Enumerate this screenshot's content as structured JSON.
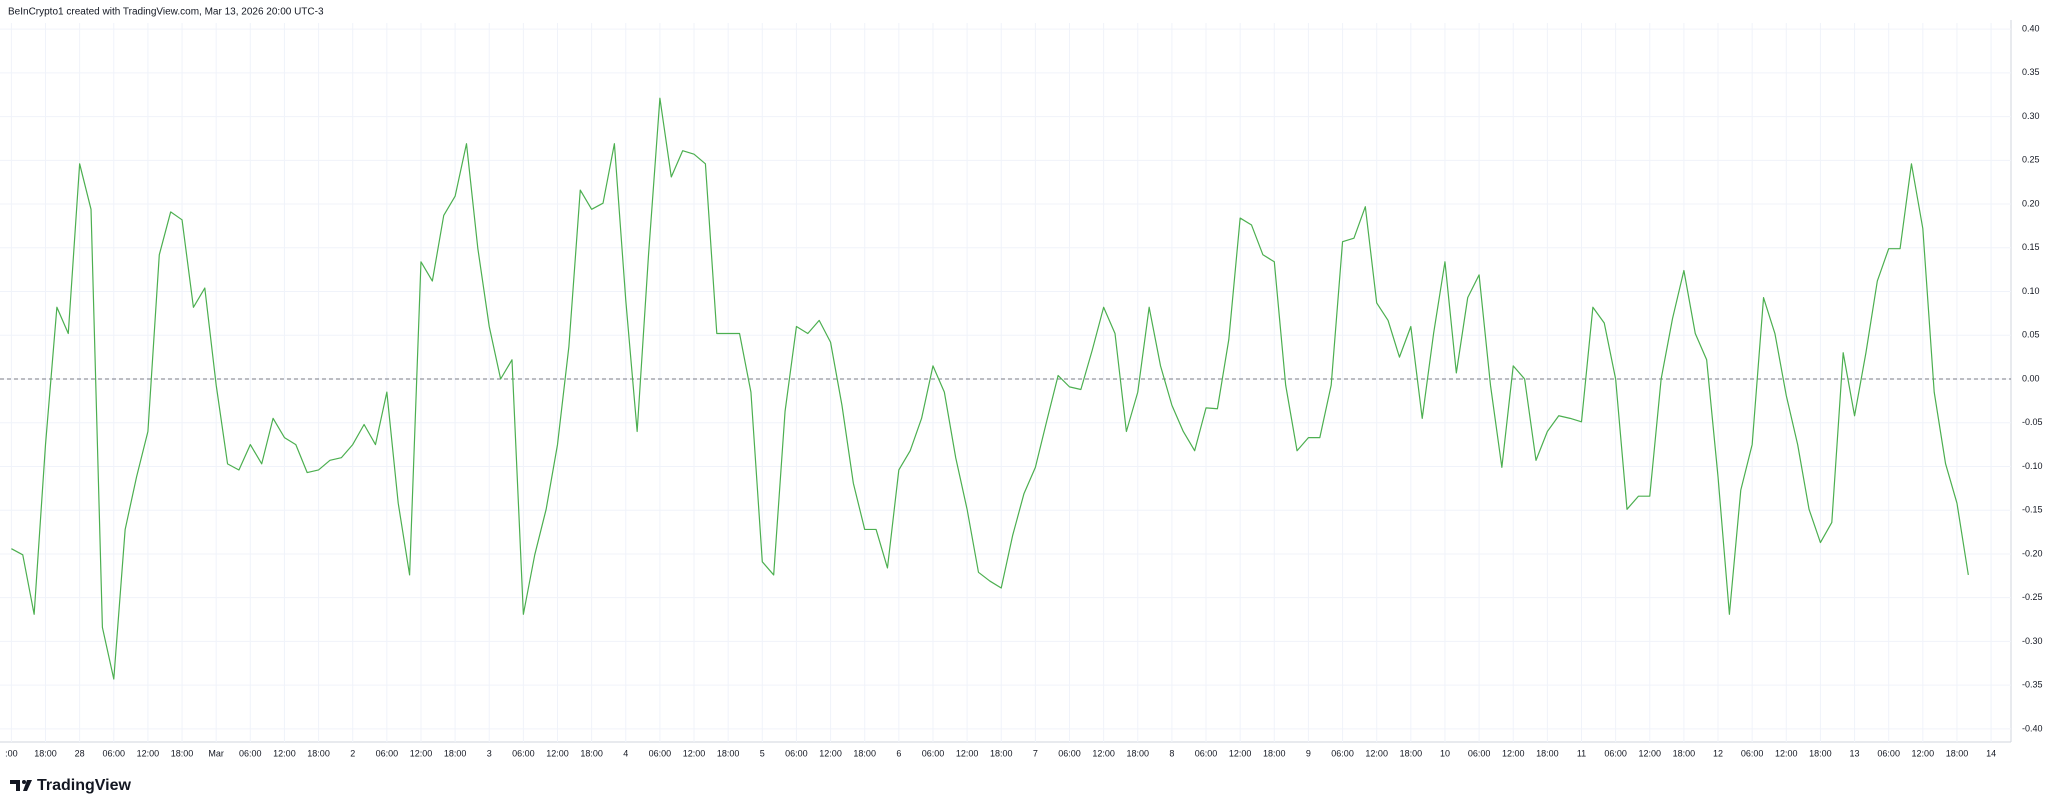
{
  "chart_data": {
    "type": "line",
    "caption": "BeInCrypto1 created with TradingView.com, Mar 13, 2026 20:00 UTC-3",
    "brand": "TradingView",
    "color": "#4caf50",
    "grid": true,
    "baseline": 0,
    "x": [
      0,
      2,
      4,
      6,
      8,
      10,
      12,
      14,
      16,
      18,
      20,
      22,
      24,
      26,
      28,
      30,
      32,
      34,
      36,
      38,
      40,
      42,
      44,
      46,
      48,
      50,
      52,
      54,
      56,
      58,
      60,
      62,
      64,
      66,
      68,
      70,
      72,
      74,
      76,
      78,
      80,
      82,
      84,
      86,
      88,
      90,
      92,
      94,
      96,
      98,
      100,
      102,
      104,
      106,
      108,
      110,
      112,
      114,
      116,
      118,
      120,
      122,
      124,
      126,
      128,
      130,
      132,
      134,
      136,
      138,
      140,
      142,
      144,
      146,
      148,
      150,
      152,
      154,
      156,
      158,
      160,
      162,
      164,
      166,
      168,
      170,
      172,
      174,
      176,
      178,
      180,
      182,
      184,
      186,
      188,
      190,
      192,
      194,
      196,
      198,
      200,
      202,
      204,
      206,
      208,
      210,
      212,
      214,
      216,
      218,
      220,
      222,
      224,
      226,
      228,
      230,
      232,
      234,
      236,
      238,
      240,
      242,
      244,
      246,
      248,
      250,
      252,
      254,
      256,
      258,
      260,
      262,
      264,
      266,
      268,
      270,
      272,
      274,
      276,
      278,
      280,
      282,
      284,
      286,
      288,
      290,
      292,
      294,
      296,
      298,
      300,
      302,
      304,
      306,
      308,
      310,
      312,
      314,
      316,
      318,
      320,
      322,
      324,
      326,
      328,
      330,
      332,
      334,
      336,
      338,
      340,
      342,
      344
    ],
    "values": [
      -0.194,
      -0.201,
      -0.269,
      -0.075,
      0.082,
      0.052,
      0.246,
      0.194,
      -0.284,
      -0.343,
      -0.172,
      -0.112,
      -0.06,
      0.142,
      0.191,
      0.182,
      0.082,
      0.104,
      -0.007,
      -0.097,
      -0.104,
      -0.075,
      -0.097,
      -0.045,
      -0.067,
      -0.075,
      -0.107,
      -0.104,
      -0.093,
      -0.09,
      -0.075,
      -0.052,
      -0.075,
      -0.015,
      -0.142,
      -0.224,
      0.134,
      0.112,
      0.187,
      0.209,
      0.269,
      0.149,
      0.06,
      0.0,
      0.022,
      -0.269,
      -0.201,
      -0.149,
      -0.075,
      0.037,
      0.216,
      0.194,
      0.201,
      0.269,
      0.09,
      -0.06,
      0.142,
      0.321,
      0.231,
      0.261,
      0.257,
      0.246,
      0.052,
      0.052,
      0.052,
      -0.015,
      -0.209,
      -0.224,
      -0.037,
      0.06,
      0.052,
      0.067,
      0.042,
      -0.03,
      -0.119,
      -0.172,
      -0.172,
      -0.216,
      -0.104,
      -0.082,
      -0.045,
      0.015,
      -0.015,
      -0.09,
      -0.149,
      -0.221,
      -0.231,
      -0.239,
      -0.179,
      -0.131,
      -0.101,
      -0.048,
      0.004,
      -0.009,
      -0.012,
      0.033,
      0.082,
      0.052,
      -0.06,
      -0.015,
      0.082,
      0.015,
      -0.03,
      -0.06,
      -0.082,
      -0.033,
      -0.034,
      0.045,
      0.184,
      0.176,
      0.142,
      0.134,
      -0.007,
      -0.082,
      -0.067,
      -0.067,
      -0.007,
      0.157,
      0.161,
      0.197,
      0.087,
      0.067,
      0.025,
      0.06,
      -0.045,
      0.052,
      0.134,
      0.007,
      0.093,
      0.119,
      -0.007,
      -0.101,
      0.015,
      0.0,
      -0.093,
      -0.06,
      -0.042,
      -0.045,
      -0.049,
      0.082,
      0.064,
      0.0,
      -0.149,
      -0.134,
      -0.134,
      0.0,
      0.069,
      0.124,
      0.052,
      0.022,
      -0.112,
      -0.269,
      -0.127,
      -0.075,
      0.093,
      0.052,
      -0.019,
      -0.075,
      -0.149,
      -0.187,
      -0.164,
      0.03,
      -0.042,
      0.03,
      0.112,
      0.149,
      0.149,
      0.246,
      0.172,
      -0.015,
      -0.097,
      -0.142,
      -0.224
    ],
    "xlim": [
      -2,
      351.5
    ],
    "ylim": [
      -0.415,
      0.407
    ],
    "yticks": [
      {
        "value": 0.4,
        "label": "0.40"
      },
      0.35,
      {
        "value": 0.3,
        "label": "0.30"
      },
      0.25,
      {
        "value": 0.2,
        "label": "0.20"
      },
      0.15,
      {
        "value": 0.1,
        "label": "0.10"
      },
      0.05,
      {
        "value": 0,
        "label": "0.00"
      },
      -0.05,
      {
        "value": -0.1,
        "label": "-0.10"
      },
      -0.15,
      {
        "value": -0.2,
        "label": "-0.20"
      },
      -0.25,
      {
        "value": -0.3,
        "label": "-0.30"
      },
      -0.35,
      {
        "value": -0.4,
        "label": "-0.40"
      }
    ],
    "xticks": [
      {
        "value": 0,
        "label": ":00"
      },
      {
        "value": 6,
        "label": "18:00"
      },
      {
        "value": 12,
        "label": "28"
      },
      {
        "value": 18,
        "label": "06:00"
      },
      {
        "value": 24,
        "label": "12:00"
      },
      {
        "value": 30,
        "label": "18:00"
      },
      {
        "value": 36,
        "label": "Mar"
      },
      {
        "value": 42,
        "label": "06:00"
      },
      {
        "value": 48,
        "label": "12:00"
      },
      {
        "value": 54,
        "label": "18:00"
      },
      {
        "value": 60,
        "label": "2"
      },
      {
        "value": 66,
        "label": "06:00"
      },
      {
        "value": 72,
        "label": "12:00"
      },
      {
        "value": 78,
        "label": "18:00"
      },
      {
        "value": 84,
        "label": "3"
      },
      {
        "value": 90,
        "label": "06:00"
      },
      {
        "value": 96,
        "label": "12:00"
      },
      {
        "value": 102,
        "label": "18:00"
      },
      {
        "value": 108,
        "label": "4"
      },
      {
        "value": 114,
        "label": "06:00"
      },
      {
        "value": 120,
        "label": "12:00"
      },
      {
        "value": 126,
        "label": "18:00"
      },
      {
        "value": 132,
        "label": "5"
      },
      {
        "value": 138,
        "label": "06:00"
      },
      {
        "value": 144,
        "label": "12:00"
      },
      {
        "value": 150,
        "label": "18:00"
      },
      {
        "value": 156,
        "label": "6"
      },
      {
        "value": 162,
        "label": "06:00"
      },
      {
        "value": 168,
        "label": "12:00"
      },
      {
        "value": 174,
        "label": "18:00"
      },
      {
        "value": 180,
        "label": "7"
      },
      {
        "value": 186,
        "label": "06:00"
      },
      {
        "value": 192,
        "label": "12:00"
      },
      {
        "value": 198,
        "label": "18:00"
      },
      {
        "value": 204,
        "label": "8"
      },
      {
        "value": 210,
        "label": "06:00"
      },
      {
        "value": 216,
        "label": "12:00"
      },
      {
        "value": 222,
        "label": "18:00"
      },
      {
        "value": 228,
        "label": "9"
      },
      {
        "value": 234,
        "label": "06:00"
      },
      {
        "value": 240,
        "label": "12:00"
      },
      {
        "value": 246,
        "label": "18:00"
      },
      {
        "value": 252,
        "label": "10"
      },
      {
        "value": 258,
        "label": "06:00"
      },
      {
        "value": 264,
        "label": "12:00"
      },
      {
        "value": 270,
        "label": "18:00"
      },
      {
        "value": 276,
        "label": "11"
      },
      {
        "value": 282,
        "label": "06:00"
      },
      {
        "value": 288,
        "label": "12:00"
      },
      {
        "value": 294,
        "label": "18:00"
      },
      {
        "value": 300,
        "label": "12"
      },
      {
        "value": 306,
        "label": "06:00"
      },
      {
        "value": 312,
        "label": "12:00"
      },
      {
        "value": 318,
        "label": "18:00"
      },
      {
        "value": 324,
        "label": "13"
      },
      {
        "value": 330,
        "label": "06:00"
      },
      {
        "value": 336,
        "label": "12:00"
      },
      {
        "value": 342,
        "label": "18:00"
      },
      {
        "value": 348,
        "label": "14"
      }
    ]
  }
}
